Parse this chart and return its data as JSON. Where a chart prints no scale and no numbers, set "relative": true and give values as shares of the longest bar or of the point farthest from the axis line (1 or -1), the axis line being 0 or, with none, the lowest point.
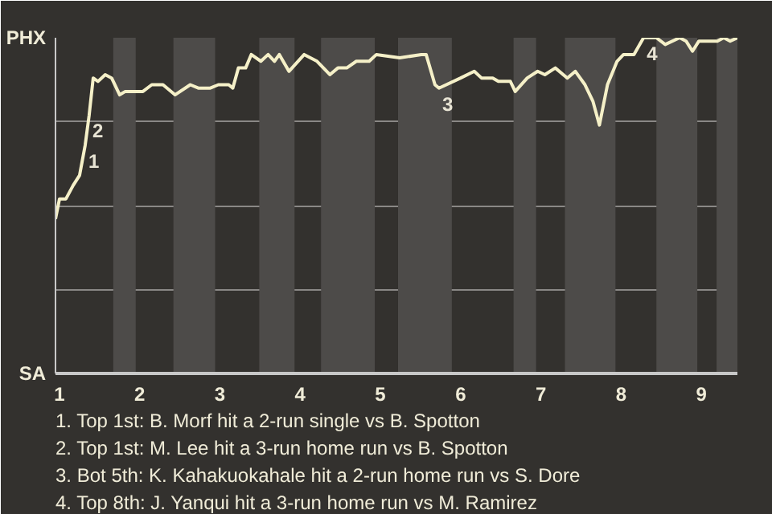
{
  "chart_data": {
    "type": "line",
    "relative": true,
    "x": [
      0.95,
      1,
      1.08,
      1.17,
      1.25,
      1.32,
      1.37,
      1.42,
      1.48,
      1.57,
      1.65,
      1.75,
      1.82,
      1.98,
      2.04,
      2.15,
      2.29,
      2.44,
      2.63,
      2.73,
      2.88,
      2.98,
      3.11,
      3.16,
      3.23,
      3.32,
      3.39,
      3.51,
      3.6,
      3.68,
      3.74,
      3.86,
      4.05,
      4.21,
      4.37,
      4.47,
      4.58,
      4.7,
      4.86,
      4.95,
      5.24,
      5.51,
      5.57,
      5.68,
      5.73,
      6,
      6.17,
      6.26,
      6.4,
      6.47,
      6.62,
      6.68,
      6.83,
      6.96,
      7.05,
      7.18,
      7.33,
      7.43,
      7.55,
      7.65,
      7.73,
      7.83,
      7.95,
      8.03,
      8.16,
      8.28,
      8.44,
      8.55,
      8.73,
      8.81,
      8.89,
      8.97,
      9.2,
      9.28,
      9.36,
      9.45
    ],
    "series": [
      {
        "color": "#f5f0c8",
        "values": [
          0.46,
          0.52,
          0.52,
          0.56,
          0.59,
          0.68,
          0.77,
          0.88,
          0.87,
          0.89,
          0.88,
          0.83,
          0.84,
          0.84,
          0.84,
          0.86,
          0.86,
          0.83,
          0.86,
          0.85,
          0.85,
          0.86,
          0.86,
          0.85,
          0.91,
          0.91,
          0.95,
          0.93,
          0.95,
          0.93,
          0.95,
          0.9,
          0.95,
          0.93,
          0.89,
          0.91,
          0.91,
          0.93,
          0.93,
          0.95,
          0.94,
          0.95,
          0.95,
          0.86,
          0.85,
          0.88,
          0.9,
          0.88,
          0.88,
          0.87,
          0.87,
          0.84,
          0.88,
          0.9,
          0.89,
          0.91,
          0.88,
          0.9,
          0.86,
          0.81,
          0.74,
          0.86,
          0.93,
          0.95,
          0.95,
          1.0,
          1.0,
          0.98,
          1.0,
          0.99,
          0.96,
          0.99,
          0.99,
          1.0,
          0.99,
          1.0
        ]
      }
    ],
    "xlim": [
      0.95,
      9.45
    ],
    "xticks": [
      1,
      2,
      3,
      4,
      5,
      6,
      7,
      8,
      9
    ],
    "grid": "y",
    "line_style": "solid",
    "bands": [
      {
        "axis": "x",
        "from": 1.67,
        "to": 1.95,
        "color": "#4d4b49"
      },
      {
        "axis": "x",
        "from": 2.42,
        "to": 2.94,
        "color": "#4d4b49"
      },
      {
        "axis": "x",
        "from": 3.49,
        "to": 3.93,
        "color": "#4d4b49"
      },
      {
        "axis": "x",
        "from": 4.26,
        "to": 4.93,
        "color": "#4d4b49"
      },
      {
        "axis": "x",
        "from": 5.22,
        "to": 5.89,
        "color": "#4d4b49"
      },
      {
        "axis": "x",
        "from": 6.66,
        "to": 6.94,
        "color": "#4d4b49"
      },
      {
        "axis": "x",
        "from": 7.3,
        "to": 7.93,
        "color": "#4d4b49"
      },
      {
        "axis": "x",
        "from": 8.44,
        "to": 8.95,
        "color": "#4d4b49"
      },
      {
        "axis": "x",
        "from": 9.19,
        "to": 9.45,
        "color": "#4d4b49"
      }
    ],
    "annotations": [
      {
        "text": "1",
        "x": 1.32,
        "y": 0.68
      },
      {
        "text": "2",
        "x": 1.37,
        "y": 0.77
      },
      {
        "text": "3",
        "x": 5.73,
        "y": 0.85
      },
      {
        "text": "4",
        "x": 8.28,
        "y": 1.0
      },
      "PHX",
      "SA",
      "1. Top 1st: B. Morf hit a 2-run single vs B. Spotton",
      "2. Top 1st: M. Lee hit a 3-run home run vs B. Spotton",
      "3. Bot 5th: K. Kahakuokahale hit a 2-run home run vs S. Dore",
      "4. Top 8th: J. Yanqui hit a 3-run home run vs M. Ramirez"
    ]
  }
}
